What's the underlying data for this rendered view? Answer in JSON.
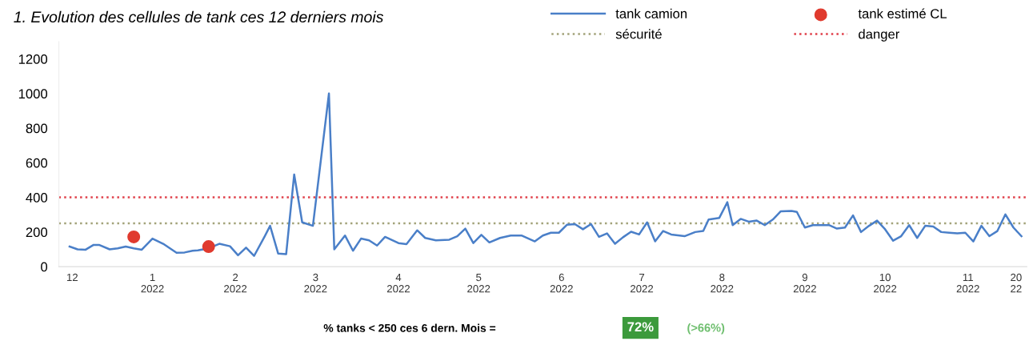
{
  "chart_data": {
    "type": "line",
    "title": "1. Evolution des cellules de tank ces 12 derniers mois",
    "xlim": [
      "2021-12-11",
      "2022-12-08"
    ],
    "xticks": [
      {
        "value": "2021-12-16",
        "label": "12"
      },
      {
        "value": "2022-01-15",
        "label": "1\n2022"
      },
      {
        "value": "2022-02-15",
        "label": "2\n2022"
      },
      {
        "value": "2022-03-17",
        "label": "3\n2022"
      },
      {
        "value": "2022-04-17",
        "label": "4\n2022"
      },
      {
        "value": "2022-05-17",
        "label": "5\n2022"
      },
      {
        "value": "2022-06-17",
        "label": "6\n2022"
      },
      {
        "value": "2022-07-17",
        "label": "7\n2022"
      },
      {
        "value": "2022-08-16",
        "label": "8\n2022"
      },
      {
        "value": "2022-09-16",
        "label": "9\n2022"
      },
      {
        "value": "2022-10-16",
        "label": "10\n2022"
      },
      {
        "value": "2022-11-16",
        "label": "11\n2022"
      },
      {
        "value": "2022-12-04",
        "label": "20\n22"
      }
    ],
    "ylim": [
      0,
      1300
    ],
    "yticks": [
      0,
      200,
      400,
      600,
      800,
      1000,
      1200
    ],
    "grid": false,
    "legend": "top right",
    "series": [
      {
        "name": "tank camion",
        "color": "#4a7fc8",
        "marker": "none",
        "line_style": "solid",
        "x": [
          "2021-12-15",
          "2021-12-18",
          "2021-12-21",
          "2021-12-24",
          "2021-12-26",
          "2021-12-30",
          "2022-01-02",
          "2022-01-05",
          "2022-01-08",
          "2022-01-11",
          "2022-01-15",
          "2022-01-19",
          "2022-01-24",
          "2022-01-27",
          "2022-01-30",
          "2022-02-01",
          "2022-02-05",
          "2022-02-09",
          "2022-02-13",
          "2022-02-16",
          "2022-02-19",
          "2022-02-22",
          "2022-02-26",
          "2022-02-28",
          "2022-03-03",
          "2022-03-06",
          "2022-03-09",
          "2022-03-12",
          "2022-03-16",
          "2022-03-22",
          "2022-03-24",
          "2022-03-28",
          "2022-03-31",
          "2022-04-03",
          "2022-04-06",
          "2022-04-09",
          "2022-04-12",
          "2022-04-17",
          "2022-04-20",
          "2022-04-24",
          "2022-04-27",
          "2022-05-01",
          "2022-05-06",
          "2022-05-09",
          "2022-05-12",
          "2022-05-15",
          "2022-05-18",
          "2022-05-21",
          "2022-05-25",
          "2022-05-29",
          "2022-06-02",
          "2022-06-07",
          "2022-06-10",
          "2022-06-13",
          "2022-06-16",
          "2022-06-19",
          "2022-06-22",
          "2022-06-25",
          "2022-06-28",
          "2022-07-01",
          "2022-07-04",
          "2022-07-07",
          "2022-07-10",
          "2022-07-13",
          "2022-07-16",
          "2022-07-19",
          "2022-07-22",
          "2022-07-25",
          "2022-07-28",
          "2022-08-02",
          "2022-08-06",
          "2022-08-09",
          "2022-08-11",
          "2022-08-15",
          "2022-08-18",
          "2022-08-20",
          "2022-08-23",
          "2022-08-26",
          "2022-08-29",
          "2022-09-01",
          "2022-09-04",
          "2022-09-07",
          "2022-09-11",
          "2022-09-13",
          "2022-09-16",
          "2022-09-19",
          "2022-09-25",
          "2022-09-28",
          "2022-10-01",
          "2022-10-04",
          "2022-10-07",
          "2022-10-10",
          "2022-10-13",
          "2022-10-16",
          "2022-10-19",
          "2022-10-22",
          "2022-10-25",
          "2022-10-28",
          "2022-10-31",
          "2022-11-03",
          "2022-11-06",
          "2022-11-09",
          "2022-11-12",
          "2022-11-15",
          "2022-11-18",
          "2022-11-21",
          "2022-11-24",
          "2022-11-27",
          "2022-11-30",
          "2022-12-03",
          "2022-12-06"
        ],
        "values": [
          116,
          100,
          98,
          126,
          126,
          100,
          106,
          116,
          106,
          98,
          162,
          132,
          80,
          82,
          92,
          94,
          106,
          132,
          118,
          66,
          110,
          62,
          176,
          236,
          76,
          72,
          532,
          256,
          236,
          1000,
          100,
          180,
          92,
          162,
          152,
          122,
          172,
          136,
          130,
          210,
          166,
          152,
          156,
          176,
          220,
          136,
          184,
          140,
          166,
          180,
          180,
          146,
          180,
          196,
          196,
          242,
          246,
          216,
          246,
          172,
          192,
          132,
          170,
          202,
          186,
          256,
          146,
          206,
          186,
          176,
          200,
          206,
          272,
          282,
          372,
          240,
          276,
          260,
          266,
          240,
          272,
          320,
          322,
          316,
          226,
          240,
          240,
          220,
          226,
          296,
          200,
          236,
          266,
          216,
          150,
          176,
          240,
          166,
          236,
          232,
          200,
          196,
          192,
          196,
          146,
          236,
          176,
          206,
          302,
          226,
          176
        ]
      },
      {
        "name": "tank estimé CL",
        "type": "scatter",
        "color": "#e03a2e",
        "marker": "circle",
        "x": [
          "2022-01-08",
          "2022-02-05"
        ],
        "values": [
          172,
          116
        ]
      }
    ],
    "ref_lines": [
      {
        "axis": "y",
        "value": 250,
        "label": "sécurité",
        "color": "#a3a37a",
        "line_style": "dotted"
      },
      {
        "axis": "y",
        "value": 400,
        "label": "danger",
        "color": "#e0404a",
        "line_style": "dotted"
      }
    ],
    "annotations": [
      "% tanks < 250 ces 6 dern. Mois =",
      "72%",
      "(>66%)"
    ]
  }
}
